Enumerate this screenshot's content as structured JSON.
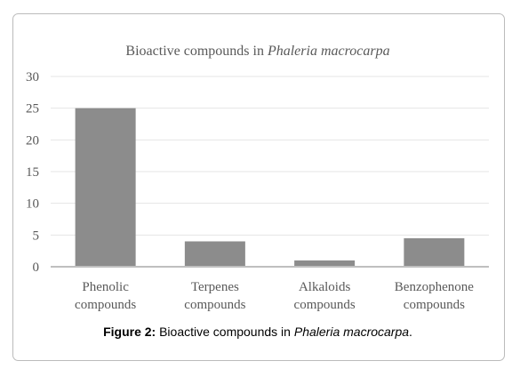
{
  "chart_data": {
    "type": "bar",
    "title": {
      "text": "Bioactive compounds in",
      "italic": "Phaleria macrocarpa"
    },
    "categories": [
      "Phenolic compounds",
      "Terpenes compounds",
      "Alkaloids compounds",
      "Benzophenone compounds"
    ],
    "values": [
      25,
      4,
      1,
      4.5
    ],
    "color": "#8c8c8c",
    "ylim": [
      0,
      30
    ],
    "yticks": [
      0,
      5,
      10,
      15,
      20,
      25,
      30
    ],
    "grid": true
  },
  "caption": {
    "label": "Figure 2:",
    "text": "Bioactive compounds in",
    "italic": "Phaleria macrocarpa",
    "end": "."
  }
}
